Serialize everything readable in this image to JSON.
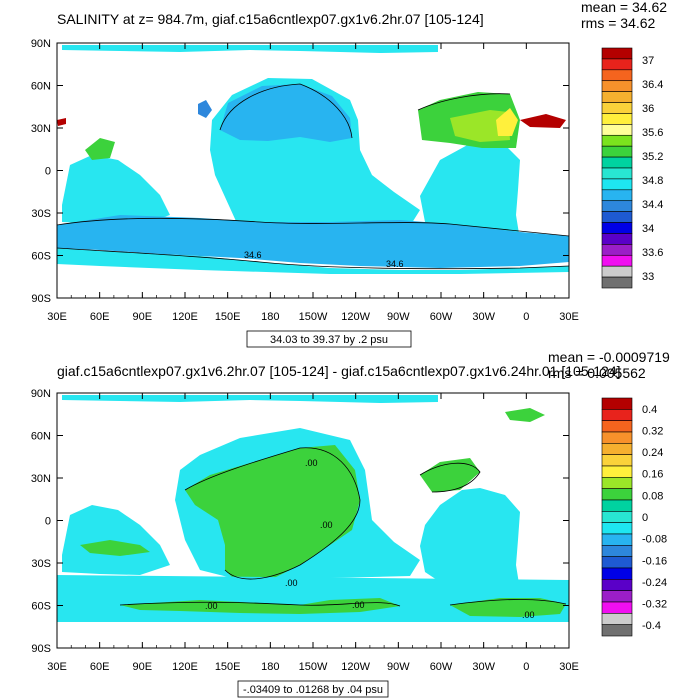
{
  "chart_data": [
    {
      "type": "contour-map",
      "title": "SALINITY at z= 984.7m, giaf.c15a6cntlexp07.gx1v6.2hr.07 [105-124]",
      "stats": {
        "mean": "mean = 34.62",
        "rms": "rms = 34.62"
      },
      "x_ticks": [
        "30E",
        "60E",
        "90E",
        "120E",
        "150E",
        "180",
        "150W",
        "120W",
        "90W",
        "60W",
        "30W",
        "0",
        "30E"
      ],
      "y_ticks": [
        "90N",
        "60N",
        "30N",
        "0",
        "30S",
        "60S",
        "90S"
      ],
      "contour_info": "34.03 to 39.37 by .2 psu",
      "contour_labels": [
        "34.6",
        "34.6"
      ],
      "colorbar": {
        "labels": [
          "37",
          "36.4",
          "36",
          "35.6",
          "35.2",
          "34.8",
          "34.4",
          "34",
          "33.6",
          "33"
        ],
        "colors": [
          "#b40000",
          "#e8231c",
          "#f5641e",
          "#f7912b",
          "#f5b02f",
          "#fad23a",
          "#fff03c",
          "#ffff99",
          "#7be31e",
          "#3cd23c",
          "#00d2a0",
          "#28e6d2",
          "#1ee6f0",
          "#28b4f0",
          "#2d87dc",
          "#1e5ad2",
          "#0000e6",
          "#5a00c8",
          "#9b1ec8",
          "#f00ff0",
          "#cccccc",
          "#707070"
        ]
      }
    },
    {
      "type": "contour-map",
      "title": "giaf.c15a6cntlexp07.gx1v6.2hr.07 [105-124] - giaf.c15a6cntlexp07.gx1v6.24hr.01 [105-124]",
      "stats": {
        "mean": "mean = -0.0009719",
        "rms": "rms = 0.005562"
      },
      "x_ticks": [
        "30E",
        "60E",
        "90E",
        "120E",
        "150E",
        "180",
        "150W",
        "120W",
        "90W",
        "60W",
        "30W",
        "0",
        "30E"
      ],
      "y_ticks": [
        "90N",
        "60N",
        "30N",
        "0",
        "30S",
        "60S",
        "90S"
      ],
      "contour_info": "-.03409 to .01268 by .04 psu",
      "contour_labels": [
        ".00",
        ".00",
        ".00",
        ".00",
        ".00",
        ".00"
      ],
      "colorbar": {
        "labels": [
          "0.4",
          "0.32",
          "0.24",
          "0.16",
          "0.08",
          "0",
          "-0.08",
          "-0.16",
          "-0.24",
          "-0.32",
          "-0.4"
        ],
        "colors": [
          "#b40000",
          "#e8231c",
          "#f5641e",
          "#f7912b",
          "#f5b02f",
          "#fad23a",
          "#fff03c",
          "#9be628",
          "#3cd23c",
          "#00d2a0",
          "#28e6d2",
          "#1ee6f0",
          "#28b4f0",
          "#2d87dc",
          "#1e5ad2",
          "#0000e6",
          "#5a00c8",
          "#9b1ec8",
          "#f00ff0",
          "#cccccc",
          "#707070"
        ]
      }
    }
  ]
}
